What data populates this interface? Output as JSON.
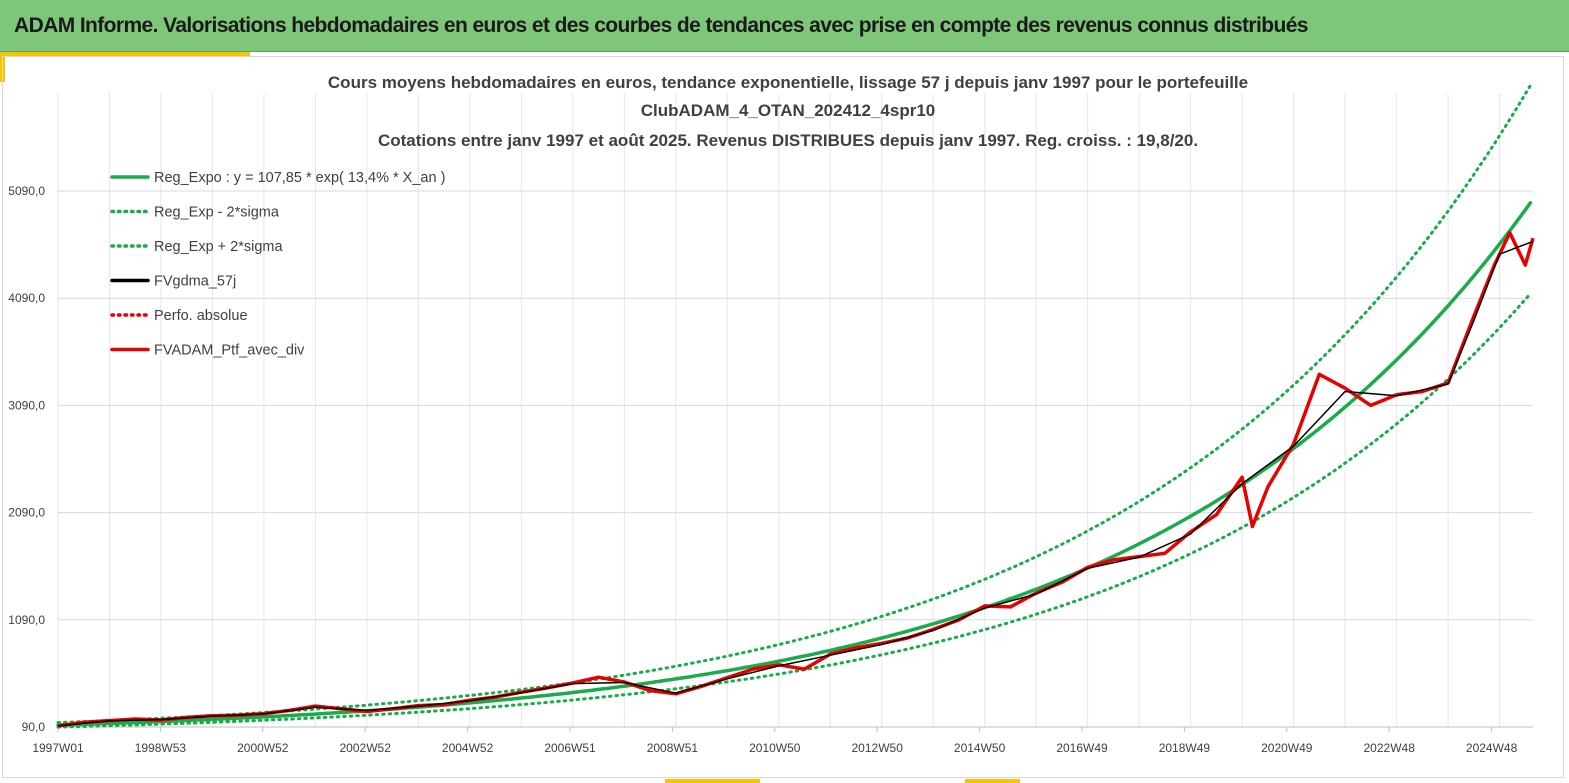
{
  "banner": {
    "title": "ADAM Informe. Valorisations hebdomadaires en euros et des courbes de tendances avec prise en compte des revenus connus distribués"
  },
  "colors": {
    "banner_bg": "#7dc67a",
    "accent": "#f7c500",
    "trend": "#1aab4b",
    "portfolio": "#e60000",
    "smoothed": "#000000"
  },
  "chart_data": {
    "type": "line",
    "title_lines": [
      "Cours moyens hebdomadaires  en euros, tendance exponentielle, lissage 57 j depuis janv 1997 pour le portefeuille",
      "ClubADAM_4_OTAN_202412_4spr10",
      "Cotations  entre janv 1997 et août 2025. Revenus DISTRIBUES depuis janv 1997. Reg. croiss. : 19,8/20."
    ],
    "x_ticks": [
      "1997W01",
      "1998W53",
      "2000W52",
      "2002W52",
      "2004W52",
      "2006W51",
      "2008W51",
      "2010W50",
      "2012W50",
      "2014W50",
      "2016W49",
      "2018W49",
      "2020W49",
      "2022W48",
      "2024W48"
    ],
    "x_range": [
      1997.0,
      2025.65
    ],
    "y_ticks": [
      "90,0",
      "1090,0",
      "2090,0",
      "3090,0",
      "4090,0",
      "5090,0"
    ],
    "ylim": [
      90,
      5090
    ],
    "grid": true,
    "legend_position": "top-left",
    "legend": [
      {
        "label": "Reg_Expo : y = 107,85 * exp( 13,4% *  X_an )",
        "style": "solid",
        "color": "#1aab4b"
      },
      {
        "label": "Reg_Exp - 2*sigma",
        "style": "dotted",
        "color": "#1aab4b"
      },
      {
        "label": "Reg_Exp + 2*sigma",
        "style": "dotted",
        "color": "#1aab4b"
      },
      {
        "label": "FVgdma_57j",
        "style": "solid",
        "color": "#000000"
      },
      {
        "label": "Perfo. absolue",
        "style": "dotted",
        "color": "#e60000"
      },
      {
        "label": "FVADAM_Ptf_avec_div",
        "style": "solid",
        "color": "#e60000"
      }
    ],
    "regression": {
      "a": 107.85,
      "rate": 0.134
    },
    "band_factors": {
      "upper": 1.22,
      "lower": 0.83
    },
    "series": [
      {
        "name": "FVADAM_Ptf_avec_div",
        "x": [
          1997.0,
          1997.5,
          1998.0,
          1998.5,
          1999.0,
          1999.5,
          2000.0,
          2000.5,
          2001.0,
          2001.5,
          2002.0,
          2002.5,
          2003.0,
          2003.5,
          2004.0,
          2004.5,
          2005.0,
          2005.5,
          2006.0,
          2006.5,
          2007.0,
          2007.5,
          2008.0,
          2008.5,
          2009.0,
          2009.5,
          2010.0,
          2010.5,
          2011.0,
          2011.5,
          2012.0,
          2012.5,
          2013.0,
          2013.5,
          2014.0,
          2014.5,
          2015.0,
          2015.5,
          2016.0,
          2016.5,
          2017.0,
          2017.5,
          2018.0,
          2018.5,
          2019.0,
          2019.5,
          2020.0,
          2020.2,
          2020.5,
          2021.0,
          2021.5,
          2022.0,
          2022.5,
          2023.0,
          2023.5,
          2024.0,
          2024.5,
          2024.9,
          2025.2,
          2025.5,
          2025.65
        ],
        "y": [
          100,
          135,
          150,
          165,
          155,
          180,
          195,
          200,
          215,
          245,
          285,
          260,
          235,
          260,
          290,
          300,
          340,
          370,
          415,
          455,
          500,
          555,
          510,
          430,
          400,
          470,
          550,
          630,
          670,
          630,
          770,
          830,
          870,
          920,
          1000,
          1090,
          1220,
          1210,
          1340,
          1440,
          1580,
          1650,
          1680,
          1710,
          1910,
          2070,
          2420,
          1960,
          2330,
          2730,
          3380,
          3250,
          3090,
          3190,
          3220,
          3300,
          3920,
          4400,
          4700,
          4400,
          4650
        ]
      },
      {
        "name": "FVgdma_57j",
        "x": [
          1997.0,
          1998.0,
          1999.0,
          2000.0,
          2001.0,
          2002.0,
          2003.0,
          2004.0,
          2005.0,
          2006.0,
          2007.0,
          2008.0,
          2009.0,
          2010.0,
          2011.0,
          2012.0,
          2013.0,
          2014.0,
          2015.0,
          2016.0,
          2017.0,
          2018.0,
          2019.0,
          2020.0,
          2021.0,
          2022.0,
          2023.0,
          2024.0,
          2024.5,
          2025.0,
          2025.65
        ],
        "y": [
          100,
          148,
          160,
          192,
          212,
          275,
          245,
          285,
          335,
          410,
          495,
          505,
          405,
          540,
          660,
          760,
          860,
          990,
          1200,
          1330,
          1570,
          1675,
          1890,
          2360,
          2710,
          3220,
          3180,
          3290,
          3880,
          4500,
          4620
        ]
      }
    ]
  }
}
